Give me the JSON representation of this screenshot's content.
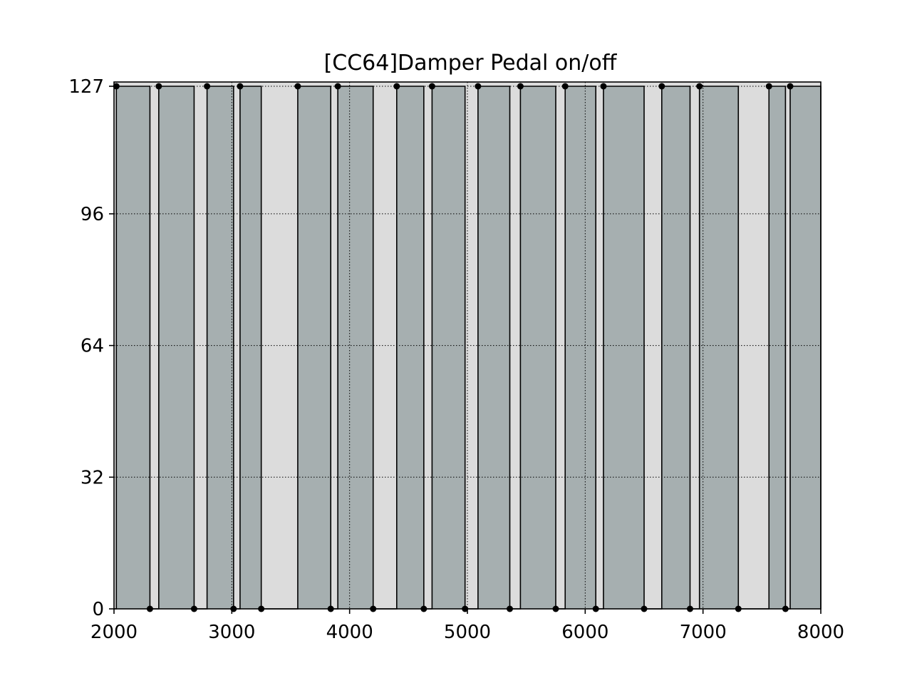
{
  "chart_data": {
    "type": "area",
    "title": "[CC64]Damper Pedal on/off",
    "xlabel": "",
    "ylabel": "",
    "xlim": [
      2000,
      8000
    ],
    "ylim": [
      0,
      127
    ],
    "xticks": [
      2000,
      3000,
      4000,
      5000,
      6000,
      7000,
      8000
    ],
    "yticks": [
      0,
      32,
      64,
      96,
      127
    ],
    "grid": true,
    "grid_style": "dotted",
    "legend": "none",
    "colors": {
      "background": "#dcdcdc",
      "fill": "#a6afb0",
      "edge": "#000000",
      "marker": "#000000"
    },
    "pedal_down_intervals": [
      [
        2020,
        2305
      ],
      [
        2380,
        2680
      ],
      [
        2790,
        3015
      ],
      [
        3070,
        3250
      ],
      [
        3560,
        3840
      ],
      [
        3900,
        4200
      ],
      [
        4400,
        4630
      ],
      [
        4700,
        4980
      ],
      [
        5090,
        5360
      ],
      [
        5450,
        5750
      ],
      [
        5830,
        6090
      ],
      [
        6155,
        6500
      ],
      [
        6650,
        6890
      ],
      [
        6970,
        7300
      ],
      [
        7560,
        7700
      ],
      [
        7740,
        8000
      ]
    ],
    "event_points": [
      {
        "x": 2020,
        "y": 127
      },
      {
        "x": 2305,
        "y": 0
      },
      {
        "x": 2380,
        "y": 127
      },
      {
        "x": 2680,
        "y": 0
      },
      {
        "x": 2790,
        "y": 127
      },
      {
        "x": 3015,
        "y": 0
      },
      {
        "x": 3070,
        "y": 127
      },
      {
        "x": 3250,
        "y": 0
      },
      {
        "x": 3560,
        "y": 127
      },
      {
        "x": 3840,
        "y": 0
      },
      {
        "x": 3900,
        "y": 127
      },
      {
        "x": 4200,
        "y": 0
      },
      {
        "x": 4400,
        "y": 127
      },
      {
        "x": 4630,
        "y": 0
      },
      {
        "x": 4700,
        "y": 127
      },
      {
        "x": 4980,
        "y": 0
      },
      {
        "x": 5090,
        "y": 127
      },
      {
        "x": 5360,
        "y": 0
      },
      {
        "x": 5450,
        "y": 127
      },
      {
        "x": 5750,
        "y": 0
      },
      {
        "x": 5830,
        "y": 127
      },
      {
        "x": 6090,
        "y": 0
      },
      {
        "x": 6155,
        "y": 127
      },
      {
        "x": 6500,
        "y": 0
      },
      {
        "x": 6650,
        "y": 127
      },
      {
        "x": 6890,
        "y": 0
      },
      {
        "x": 6970,
        "y": 127
      },
      {
        "x": 7300,
        "y": 0
      },
      {
        "x": 7560,
        "y": 127
      },
      {
        "x": 7700,
        "y": 0
      },
      {
        "x": 7740,
        "y": 127
      }
    ]
  }
}
